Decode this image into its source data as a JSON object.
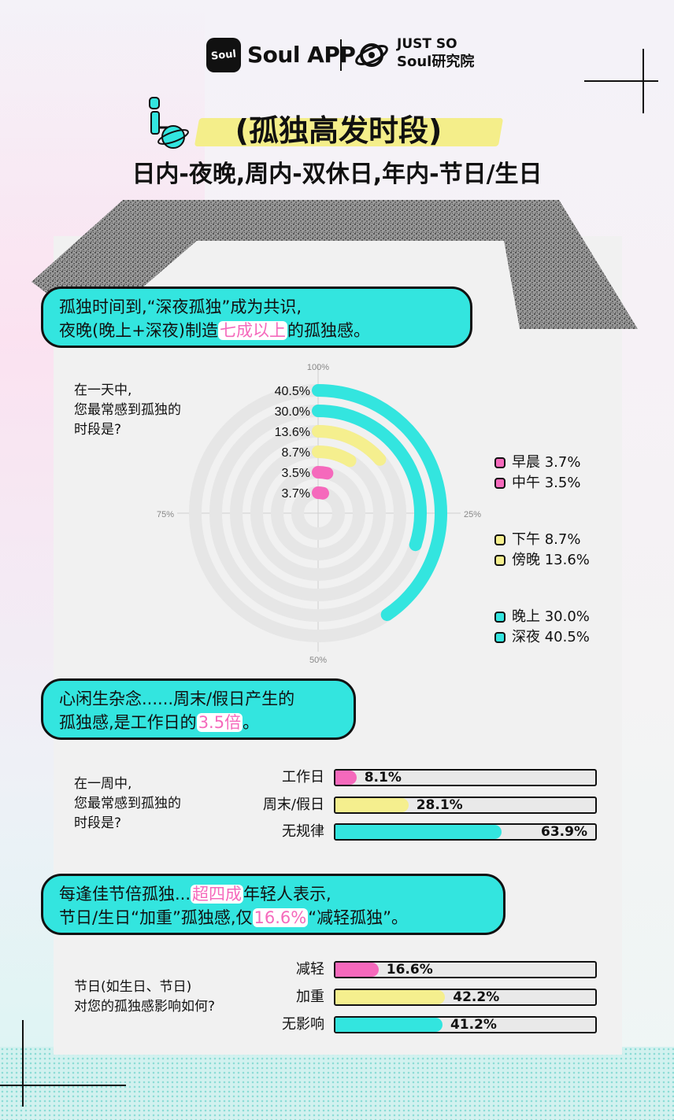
{
  "header": {
    "logo_text": "Soul",
    "app_name": "Soul APP",
    "lab_line1": "JUST SO",
    "lab_line2": "Soul研究院"
  },
  "title": "(孤独高发时段)",
  "subtitle": "日内-夜晚,周内-双休日,年内-节日/生日",
  "colors": {
    "cyan": "#33e5df",
    "yellow": "#f5ef8e",
    "pink": "#f569bc",
    "track": "#e6e6e6"
  },
  "sections": {
    "day": {
      "callout_line1": "孤独时间到,“深夜孤独”成为共识,",
      "callout_line2_pre": "夜晚(晚上+深夜)制造",
      "callout_highlight": "七成以上",
      "callout_line2_post": "的孤独感。",
      "question_line1": "在一天中,",
      "question_line2": "您最常感到孤独的",
      "question_line3": "时段是?"
    },
    "week": {
      "callout_line1": "心闲生杂念......周末/假日产生的",
      "callout_line2_pre": "孤独感,是工作日的",
      "callout_highlight": "3.5倍",
      "callout_line2_post": "。",
      "question_line1": "在一周中,",
      "question_line2": "您最常感到孤独的",
      "question_line3": "时段是?"
    },
    "holiday": {
      "callout_line1_pre": "每逢佳节倍孤独...",
      "callout_highlight1": "超四成",
      "callout_line1_post": "年轻人表示,",
      "callout_line2_pre": "节日/生日“加重”孤独感,仅",
      "callout_highlight2": "16.6%",
      "callout_line2_post": "“减轻孤独”。",
      "question_line1": "节日(如生日、节日)",
      "question_line2": "对您的孤独感影响如何?"
    }
  },
  "chart_data": [
    {
      "type": "radial-bar",
      "axis_ticks": [
        "100%",
        "25%",
        "50%",
        "75%"
      ],
      "max": 100,
      "series": [
        {
          "name": "深夜",
          "value": 40.5,
          "label": "40.5%",
          "color": "cyan"
        },
        {
          "name": "晚上",
          "value": 30.0,
          "label": "30.0%",
          "color": "cyan"
        },
        {
          "name": "傍晚",
          "value": 13.6,
          "label": "13.6%",
          "color": "yellow"
        },
        {
          "name": "下午",
          "value": 8.7,
          "label": "8.7%",
          "color": "yellow"
        },
        {
          "name": "中午",
          "value": 3.5,
          "label": "3.5%",
          "color": "pink"
        },
        {
          "name": "早晨",
          "value": 3.7,
          "label": "3.7%",
          "color": "pink"
        }
      ],
      "legend": [
        {
          "text": "早晨 3.7%",
          "color": "pink"
        },
        {
          "text": "中午 3.5%",
          "color": "pink"
        },
        {
          "text": "下午 8.7%",
          "color": "yellow"
        },
        {
          "text": "傍晚 13.6%",
          "color": "yellow"
        },
        {
          "text": "晚上 30.0%",
          "color": "cyan"
        },
        {
          "text": "深夜 40.5%",
          "color": "cyan"
        }
      ]
    },
    {
      "type": "bar",
      "orientation": "horizontal",
      "categories": [
        "工作日",
        "周末/假日",
        "无规律"
      ],
      "values": [
        8.1,
        28.1,
        63.9
      ],
      "labels": [
        "8.1%",
        "28.1%",
        "63.9%"
      ],
      "colors": [
        "pink",
        "yellow",
        "cyan"
      ],
      "xlim": [
        0,
        100
      ]
    },
    {
      "type": "bar",
      "orientation": "horizontal",
      "categories": [
        "减轻",
        "加重",
        "无影响"
      ],
      "values": [
        16.6,
        42.2,
        41.2
      ],
      "labels": [
        "16.6%",
        "42.2%",
        "41.2%"
      ],
      "colors": [
        "pink",
        "yellow",
        "cyan"
      ],
      "xlim": [
        0,
        100
      ]
    }
  ]
}
